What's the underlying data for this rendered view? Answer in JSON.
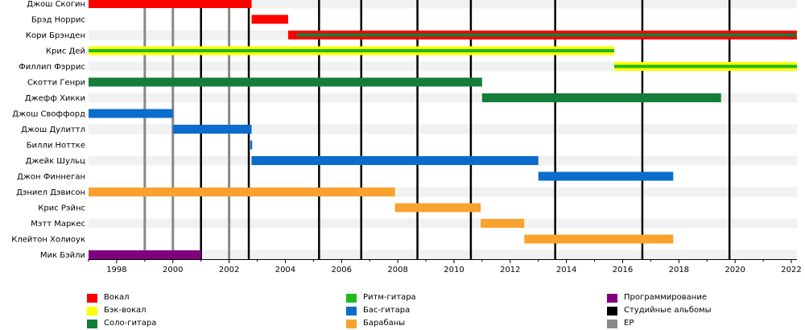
{
  "chart_data": {
    "type": "timeline",
    "xlim": [
      1997.0,
      2022.2
    ],
    "x_ticks": [
      "1998",
      "2000",
      "2002",
      "2004",
      "2006",
      "2008",
      "2010",
      "2012",
      "2014",
      "2016",
      "2018",
      "2020",
      "2022"
    ],
    "members": [
      {
        "name": "Джош Скогин",
        "bars": [
          {
            "start": 1997.0,
            "end": 2002.8,
            "role": "vocal"
          }
        ]
      },
      {
        "name": "Брэд Норрис",
        "bars": [
          {
            "start": 2002.8,
            "end": 2004.1,
            "role": "vocal"
          }
        ]
      },
      {
        "name": "Кори Брэнден",
        "bars": [
          {
            "start": 2004.1,
            "end": 2022.2,
            "role": "vocal"
          },
          {
            "start": 2004.4,
            "end": 2022.2,
            "role": "lead_guitar",
            "stripe": true
          }
        ]
      },
      {
        "name": "Крис Дей",
        "bars": [
          {
            "start": 1997.0,
            "end": 2015.7,
            "role": "backing_vocal"
          },
          {
            "start": 1997.0,
            "end": 2015.7,
            "role": "rhythm_guitar",
            "stripe": true
          }
        ]
      },
      {
        "name": "Филлип Фэррис",
        "bars": [
          {
            "start": 2015.7,
            "end": 2022.2,
            "role": "backing_vocal"
          },
          {
            "start": 2015.7,
            "end": 2022.2,
            "role": "rhythm_guitar",
            "stripe": true
          }
        ]
      },
      {
        "name": "Скотти Генри",
        "bars": [
          {
            "start": 1997.0,
            "end": 2011.0,
            "role": "lead_guitar"
          }
        ]
      },
      {
        "name": "Джефф Хикки",
        "bars": [
          {
            "start": 2011.0,
            "end": 2019.5,
            "role": "lead_guitar"
          }
        ]
      },
      {
        "name": "Джош Своффорд",
        "bars": [
          {
            "start": 1997.0,
            "end": 2000.0,
            "role": "bass"
          }
        ]
      },
      {
        "name": "Джош Дулиттл",
        "bars": [
          {
            "start": 2000.0,
            "end": 2002.8,
            "role": "bass"
          }
        ]
      },
      {
        "name": "Билли Ноттке",
        "bars": [
          {
            "start": 2002.75,
            "end": 2002.82,
            "role": "bass"
          }
        ]
      },
      {
        "name": "Джейк Шульц",
        "bars": [
          {
            "start": 2002.8,
            "end": 2013.0,
            "role": "bass"
          }
        ]
      },
      {
        "name": "Джон Финнеган",
        "bars": [
          {
            "start": 2013.0,
            "end": 2017.8,
            "role": "bass"
          }
        ]
      },
      {
        "name": "Дэниел Дэвисон",
        "bars": [
          {
            "start": 1997.0,
            "end": 2007.9,
            "role": "drums"
          }
        ]
      },
      {
        "name": "Крис Рэйнс",
        "bars": [
          {
            "start": 2007.9,
            "end": 2010.95,
            "role": "drums"
          }
        ]
      },
      {
        "name": "Мэтт Маркес",
        "bars": [
          {
            "start": 2010.95,
            "end": 2012.5,
            "role": "drums"
          }
        ]
      },
      {
        "name": "Клейтон Холиоук",
        "bars": [
          {
            "start": 2012.5,
            "end": 2017.8,
            "role": "drums"
          }
        ]
      },
      {
        "name": "Мик Бэйли",
        "bars": [
          {
            "start": 1997.0,
            "end": 2001.0,
            "role": "programming"
          }
        ]
      }
    ],
    "studio_albums": [
      2001.0,
      2002.7,
      2005.2,
      2006.7,
      2008.7,
      2010.6,
      2013.6,
      2016.7,
      2019.8
    ],
    "eps": [
      1999.0,
      2000.0,
      2002.0
    ],
    "roles": {
      "vocal": "#ff0000",
      "backing_vocal": "#ffff00",
      "lead_guitar": "#137e39",
      "rhythm_guitar": "#20b91e",
      "bass": "#0a6ccc",
      "drums": "#f9a22d",
      "programming": "#800080",
      "studio_album": "#000000",
      "ep": "#888888"
    },
    "legend": [
      {
        "role": "vocal",
        "label": "Вокал",
        "color": "#ff0000"
      },
      {
        "role": "backing_vocal",
        "label": "Бэк-вокал",
        "color": "#ffff00"
      },
      {
        "role": "lead_guitar",
        "label": "Соло-гитара",
        "color": "#137e39"
      },
      {
        "role": "rhythm_guitar",
        "label": "Ритм-гитара",
        "color": "#20b91e"
      },
      {
        "role": "bass",
        "label": "Бас-гитара",
        "color": "#0a6ccc"
      },
      {
        "role": "drums",
        "label": "Барабаны",
        "color": "#f9a22d"
      },
      {
        "role": "programming",
        "label": "Программирование",
        "color": "#800080"
      },
      {
        "role": "studio_album",
        "label": "Студийные альбомы",
        "color": "#000000"
      },
      {
        "role": "ep",
        "label": "EP",
        "color": "#888888"
      }
    ]
  }
}
